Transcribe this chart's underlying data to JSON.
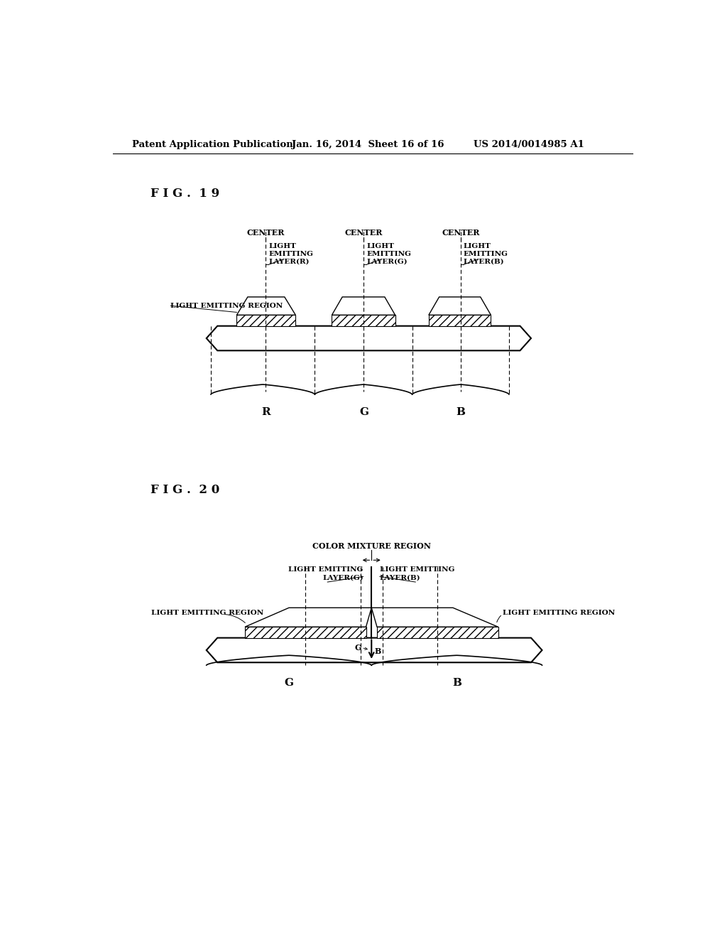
{
  "bg_color": "#ffffff",
  "header_left": "Patent Application Publication",
  "header_center": "Jan. 16, 2014  Sheet 16 of 16",
  "header_right": "US 2014/0014985 A1",
  "fig19_label": "F I G .  1 9",
  "fig20_label": "F I G .  2 0"
}
